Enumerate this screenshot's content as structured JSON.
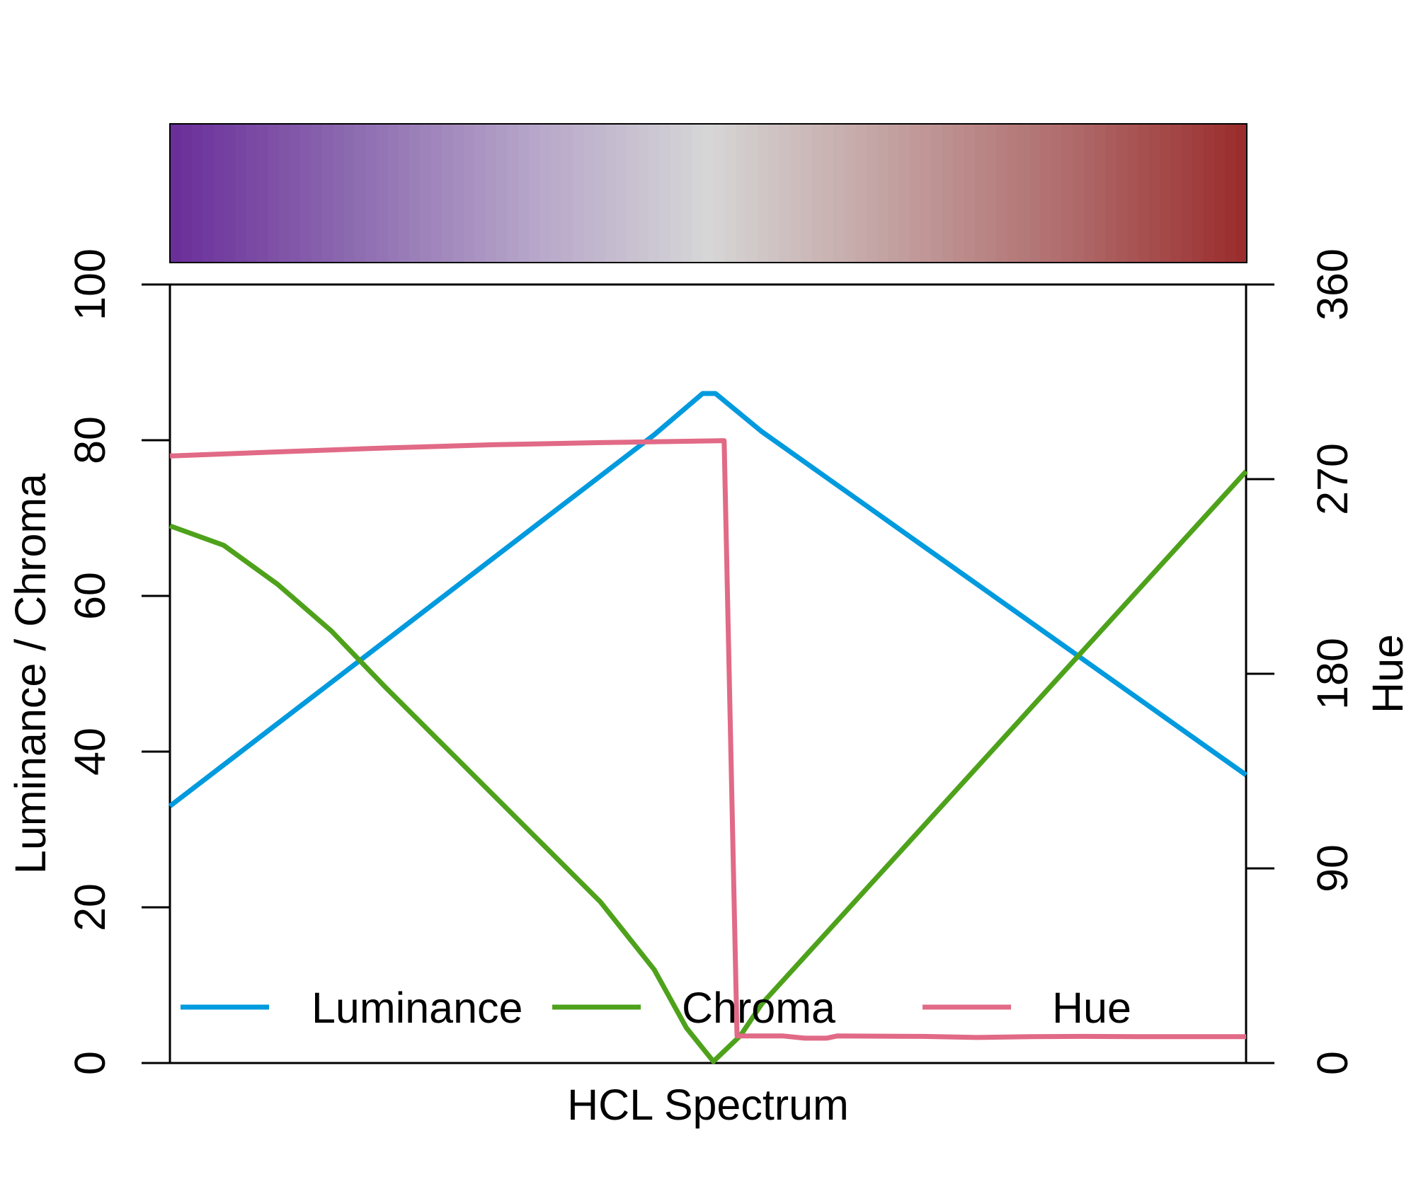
{
  "chart_data": {
    "type": "line",
    "title": "",
    "xlabel": "HCL Spectrum",
    "ylabel_left": "Luminance / Chroma",
    "ylabel_right": "Hue",
    "xlim": [
      0,
      1
    ],
    "ylim_left": [
      0,
      100
    ],
    "ylim_right": [
      0,
      360
    ],
    "yticks_left": [
      "0",
      "20",
      "40",
      "60",
      "80",
      "100"
    ],
    "yticks_right": [
      "0",
      "90",
      "180",
      "270",
      "360"
    ],
    "grid": false,
    "legend_position": "bottom",
    "palette_stops": [
      "#6B2F9A",
      "#8D6BB0",
      "#B6A5C9",
      "#D6D6D6",
      "#C4A2A2",
      "#B06D6D",
      "#9B2D2D"
    ],
    "palette_n": 99,
    "series": [
      {
        "name": "Luminance",
        "axis": "left",
        "color": "#009ADE",
        "points": [
          [
            0,
            33
          ],
          [
            0.05,
            38.3
          ],
          [
            0.1,
            43.6
          ],
          [
            0.15,
            48.9
          ],
          [
            0.2,
            54.2
          ],
          [
            0.25,
            59.5
          ],
          [
            0.3,
            64.8
          ],
          [
            0.35,
            70.1
          ],
          [
            0.4,
            75.4
          ],
          [
            0.45,
            80.7
          ],
          [
            0.495,
            86
          ],
          [
            0.507,
            86
          ],
          [
            0.55,
            81.1
          ],
          [
            0.6,
            76.2
          ],
          [
            0.65,
            71.3
          ],
          [
            0.7,
            66.4
          ],
          [
            0.75,
            61.5
          ],
          [
            0.8,
            56.6
          ],
          [
            0.85,
            51.7
          ],
          [
            0.9,
            46.8
          ],
          [
            0.95,
            41.9
          ],
          [
            1,
            37
          ]
        ]
      },
      {
        "name": "Chroma",
        "axis": "left",
        "color": "#4EA21B",
        "points": [
          [
            0,
            69
          ],
          [
            0.05,
            66.5
          ],
          [
            0.1,
            61.5
          ],
          [
            0.15,
            55.5
          ],
          [
            0.2,
            48.3
          ],
          [
            0.25,
            41.4
          ],
          [
            0.3,
            34.5
          ],
          [
            0.35,
            27.6
          ],
          [
            0.4,
            20.7
          ],
          [
            0.45,
            12
          ],
          [
            0.48,
            4.5
          ],
          [
            0.505,
            0.2
          ],
          [
            0.53,
            3.5
          ],
          [
            0.55,
            7.6
          ],
          [
            0.6,
            15.2
          ],
          [
            0.65,
            22.8
          ],
          [
            0.7,
            30.4
          ],
          [
            0.75,
            38
          ],
          [
            0.8,
            45.6
          ],
          [
            0.85,
            53.2
          ],
          [
            0.9,
            60.8
          ],
          [
            0.95,
            68.4
          ],
          [
            1,
            76
          ]
        ]
      },
      {
        "name": "Hue",
        "axis": "right",
        "color": "#E16A86",
        "points": [
          [
            0,
            280.7
          ],
          [
            0.1,
            282.6
          ],
          [
            0.2,
            284.4
          ],
          [
            0.3,
            285.9
          ],
          [
            0.4,
            286.9
          ],
          [
            0.515,
            287.8
          ],
          [
            0.527,
            12.5
          ],
          [
            0.57,
            12.5
          ],
          [
            0.59,
            11.5
          ],
          [
            0.61,
            11.5
          ],
          [
            0.62,
            12.5
          ],
          [
            0.7,
            12.3
          ],
          [
            0.75,
            11.8
          ],
          [
            0.8,
            12.2
          ],
          [
            0.85,
            12.3
          ],
          [
            0.9,
            12.2
          ],
          [
            1,
            12.2
          ]
        ]
      }
    ]
  }
}
